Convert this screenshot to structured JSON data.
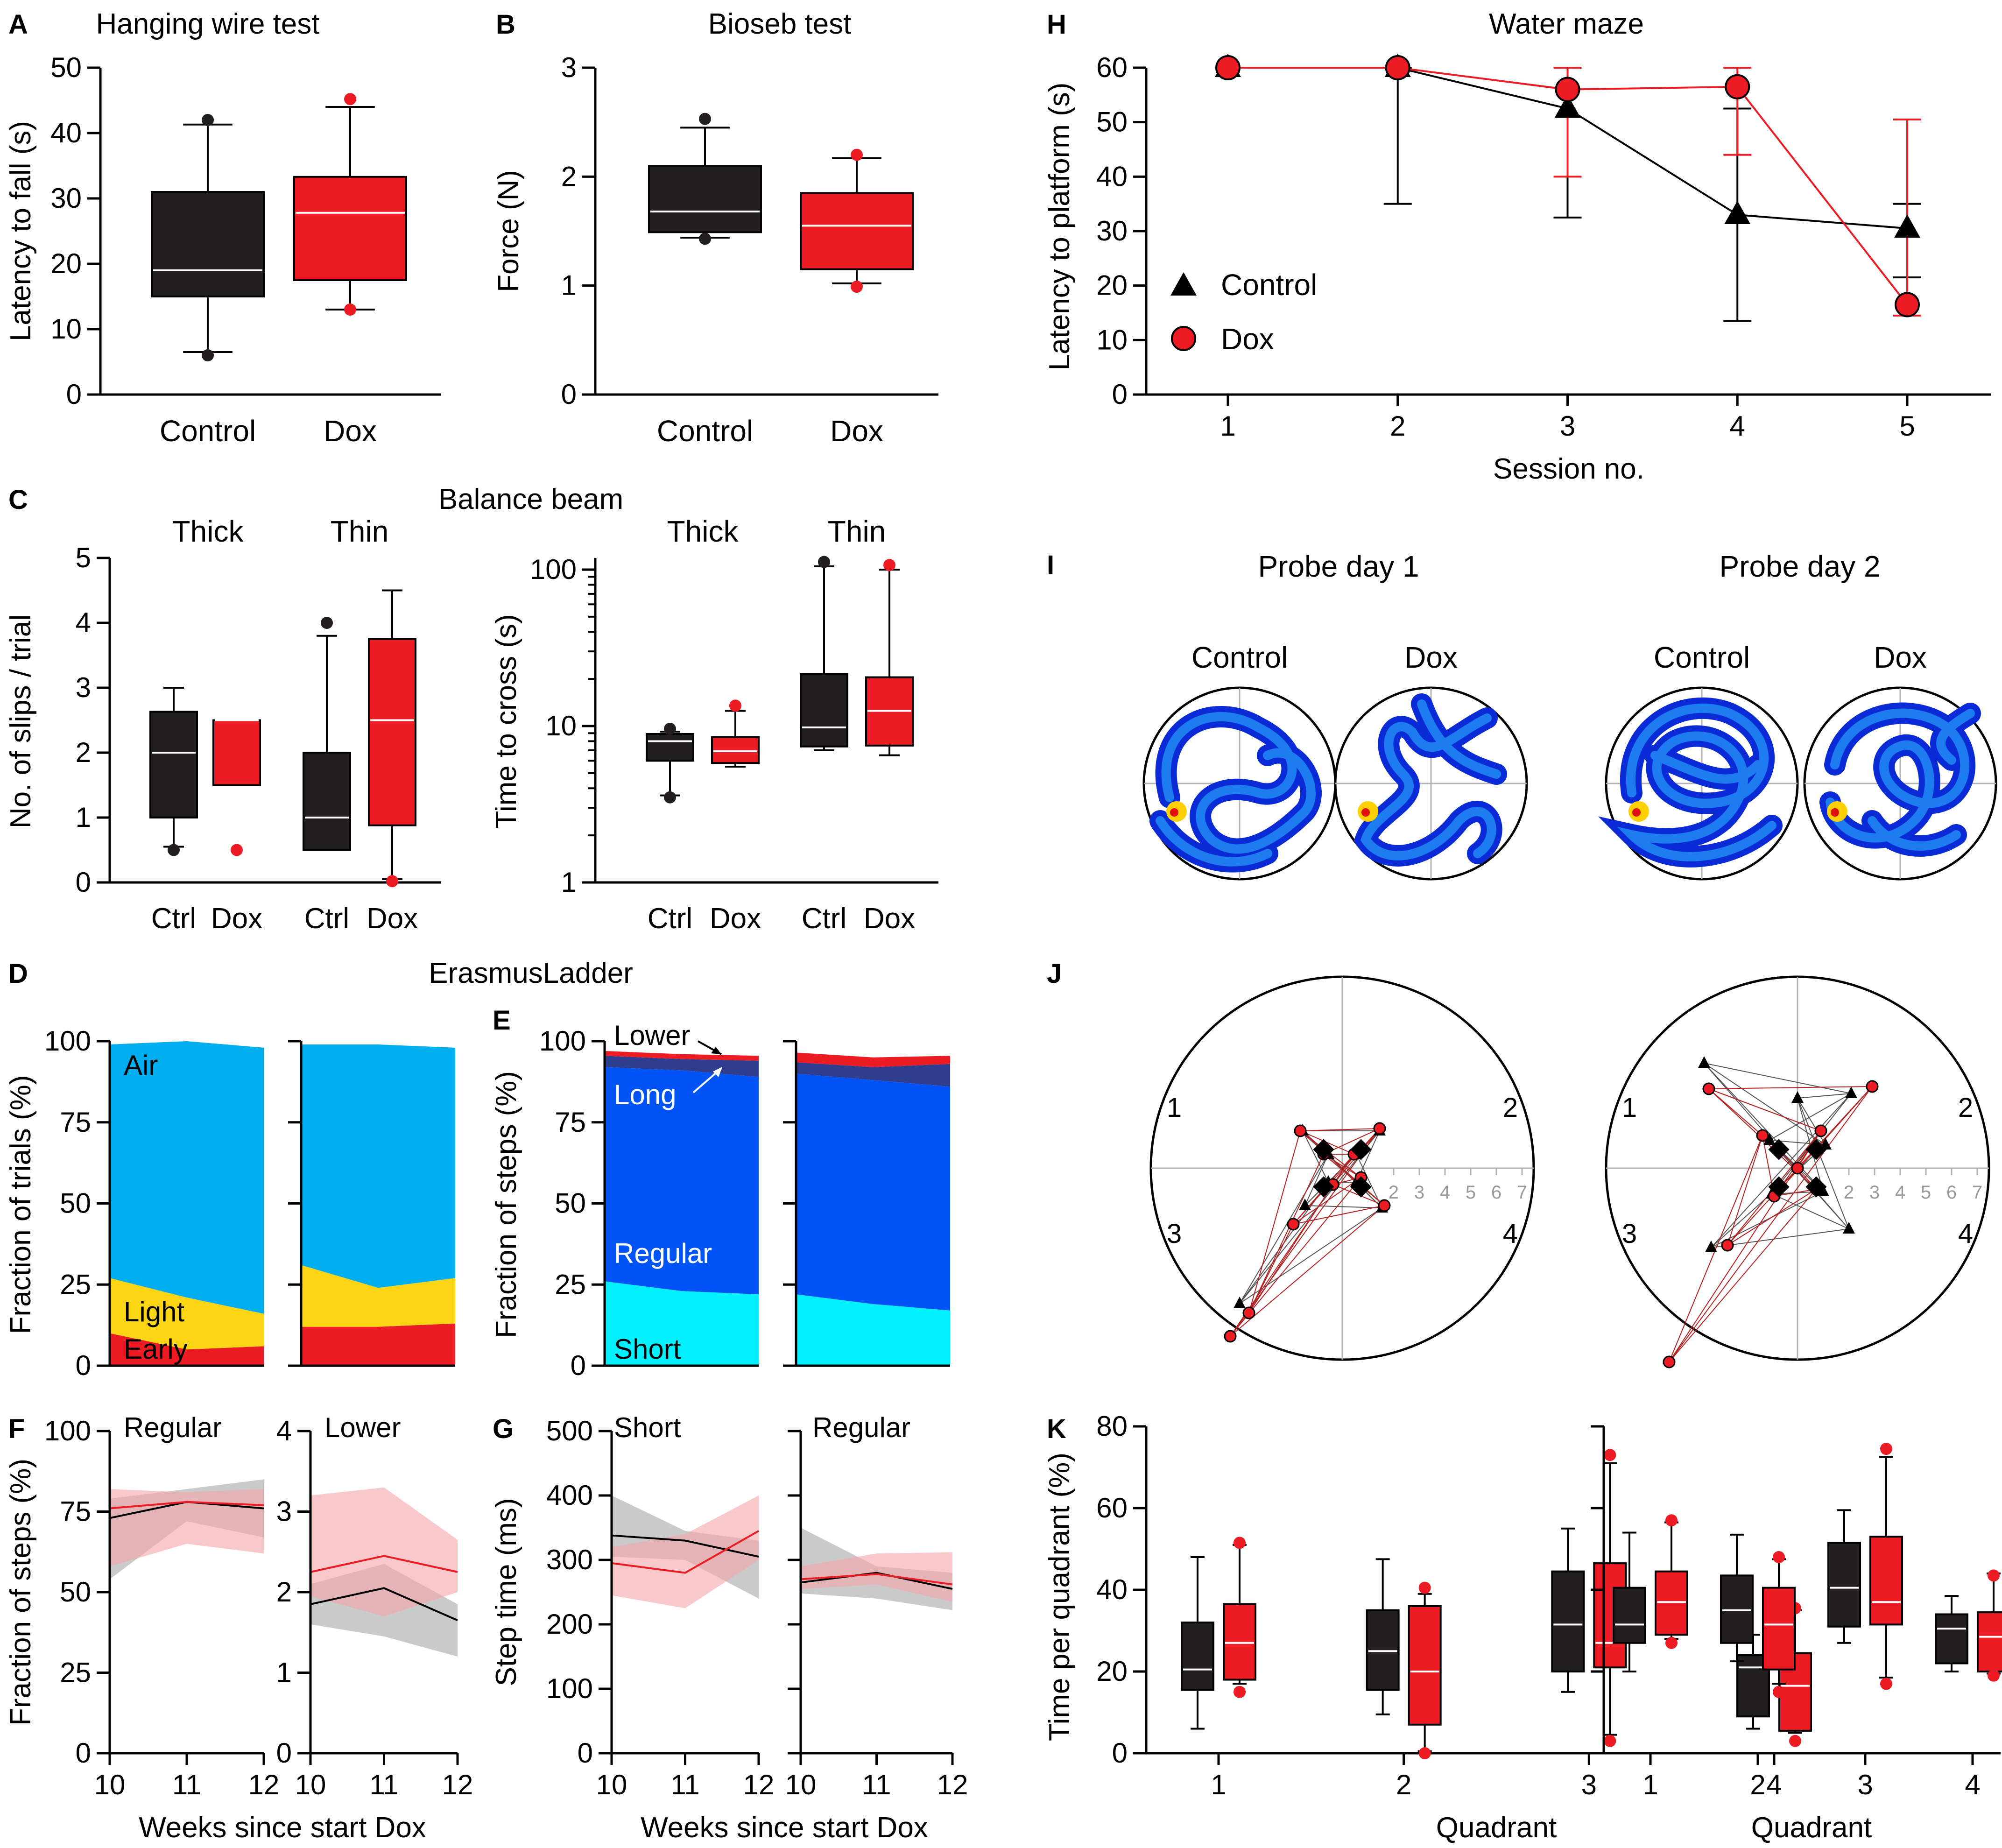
{
  "colors": {
    "control": "#231f20",
    "dox": "#ed1c24",
    "axis": "#000000",
    "air": "#00aeef",
    "light": "#fcd615",
    "early": "#ed1c24",
    "lower": "#ed1c24",
    "long": "#2e3d8e",
    "regular": "#0053f5",
    "short": "#00f0ff",
    "ctrl_band": "#a6a6a6",
    "dox_band": "#f4a3a6",
    "grid": "#b3b3b3"
  },
  "chart_data": [
    {
      "id": "A",
      "type": "box",
      "panel_label": "A",
      "title": "Hanging wire test",
      "ylabel": "Latency to fall (s)",
      "ylim": [
        0,
        50
      ],
      "yticks": [
        "0",
        "10",
        "20",
        "30",
        "40",
        "50"
      ],
      "categories": [
        "Control",
        "Dox"
      ],
      "boxes": [
        {
          "name": "Control",
          "whislo": 6.5,
          "q1": 15,
          "med": 19,
          "q3": 31,
          "whishi": 41.3,
          "fliers": [
            6,
            42
          ]
        },
        {
          "name": "Dox",
          "whislo": 13,
          "q1": 17.5,
          "med": 27.8,
          "q3": 33.3,
          "whishi": 44,
          "fliers": [
            13,
            45.2
          ]
        }
      ]
    },
    {
      "id": "B",
      "type": "box",
      "panel_label": "B",
      "title": "Bioseb test",
      "ylabel": "Force (N)",
      "ylim": [
        0,
        3
      ],
      "yticks": [
        "0",
        "1",
        "2",
        "3"
      ],
      "categories": [
        "Control",
        "Dox"
      ],
      "boxes": [
        {
          "name": "Control",
          "whislo": 1.44,
          "q1": 1.49,
          "med": 1.68,
          "q3": 2.1,
          "whishi": 2.45,
          "fliers": [
            1.43,
            2.53
          ]
        },
        {
          "name": "Dox",
          "whislo": 1.02,
          "q1": 1.15,
          "med": 1.55,
          "q3": 1.85,
          "whishi": 2.17,
          "fliers": [
            0.99,
            2.2
          ]
        }
      ]
    },
    {
      "id": "C1",
      "type": "box",
      "panel_label": "C",
      "title": "Balance beam",
      "group_labels": [
        "Thick",
        "Thin"
      ],
      "ylabel": "No. of slips / trial",
      "ylim": [
        0,
        5
      ],
      "yticks": [
        "0",
        "1",
        "2",
        "3",
        "4",
        "5"
      ],
      "categories": [
        "Ctrl",
        "Dox",
        "Ctrl",
        "Dox"
      ],
      "boxes": [
        {
          "name": "Ctrl",
          "whislo": 0.55,
          "q1": 1.0,
          "med": 2.0,
          "q3": 2.63,
          "whishi": 3.0,
          "fliers": [
            0.5
          ]
        },
        {
          "name": "Dox",
          "whislo": 1.5,
          "q1": 1.5,
          "med": 2.5,
          "q3": 2.5,
          "whishi": 2.5,
          "fliers": [
            0.5
          ]
        },
        {
          "name": "Ctrl",
          "whislo": 0.5,
          "q1": 0.5,
          "med": 1.0,
          "q3": 2.0,
          "whishi": 3.8,
          "fliers": [
            4.0
          ]
        },
        {
          "name": "Dox",
          "whislo": 0.05,
          "q1": 0.88,
          "med": 2.5,
          "q3": 3.75,
          "whishi": 4.5,
          "fliers": [
            0.02
          ]
        }
      ]
    },
    {
      "id": "C2",
      "type": "box",
      "group_labels": [
        "Thick",
        "Thin"
      ],
      "ylabel": "Time to cross (s)",
      "yscale": "log",
      "ylim": [
        1,
        100
      ],
      "yticks": [
        "1",
        "10",
        "100"
      ],
      "categories": [
        "Ctrl",
        "Dox",
        "Ctrl",
        "Dox"
      ],
      "boxes": [
        {
          "name": "Ctrl",
          "whislo": 3.6,
          "q1": 6.0,
          "med": 8.0,
          "q3": 8.9,
          "whishi": 9.2,
          "fliers": [
            3.5,
            9.6
          ]
        },
        {
          "name": "Dox",
          "whislo": 5.5,
          "q1": 5.8,
          "med": 6.9,
          "q3": 8.5,
          "whishi": 12.5,
          "fliers": [
            13.5
          ]
        },
        {
          "name": "Ctrl",
          "whislo": 7.0,
          "q1": 7.4,
          "med": 9.8,
          "q3": 21.5,
          "whishi": 105,
          "fliers": [
            112
          ]
        },
        {
          "name": "Dox",
          "whislo": 6.5,
          "q1": 7.5,
          "med": 12.5,
          "q3": 20.5,
          "whishi": 100,
          "fliers": [
            107
          ]
        }
      ]
    },
    {
      "id": "D",
      "type": "area",
      "panel_label": "D",
      "title": "ErasmusLadder",
      "ylabel": "Fraction of trials (%)",
      "ylim": [
        0,
        100
      ],
      "yticks": [
        "0",
        "25",
        "50",
        "75",
        "100"
      ],
      "x": [
        10,
        11,
        12
      ],
      "panels": [
        {
          "series": [
            {
              "name": "Early",
              "values": [
                10,
                5,
                6
              ]
            },
            {
              "name": "Light",
              "values": [
                17,
                16,
                10
              ]
            },
            {
              "name": "Air",
              "values": [
                72,
                79,
                82
              ]
            }
          ]
        },
        {
          "series": [
            {
              "name": "Early",
              "values": [
                12,
                12,
                13
              ]
            },
            {
              "name": "Light",
              "values": [
                19,
                12,
                14
              ]
            },
            {
              "name": "Air",
              "values": [
                68,
                75,
                71
              ]
            }
          ]
        }
      ],
      "labels": {
        "air": "Air",
        "light": "Light",
        "early": "Early"
      }
    },
    {
      "id": "E",
      "type": "area",
      "panel_label": "E",
      "ylabel": "Fraction of steps (%)",
      "ylim": [
        0,
        100
      ],
      "yticks": [
        "0",
        "25",
        "50",
        "75",
        "100"
      ],
      "x": [
        10,
        11,
        12
      ],
      "panels": [
        {
          "series": [
            {
              "name": "Short",
              "values": [
                26,
                23,
                22
              ]
            },
            {
              "name": "Regular",
              "values": [
                66,
                68,
                67
              ]
            },
            {
              "name": "Long",
              "values": [
                3.5,
                3.5,
                5
              ]
            },
            {
              "name": "Lower",
              "values": [
                1.5,
                1.5,
                1.5
              ]
            }
          ]
        },
        {
          "series": [
            {
              "name": "Short",
              "values": [
                22,
                19,
                17
              ]
            },
            {
              "name": "Regular",
              "values": [
                68,
                69,
                69
              ]
            },
            {
              "name": "Long",
              "values": [
                3.5,
                4,
                7
              ]
            },
            {
              "name": "Lower",
              "values": [
                3,
                3,
                2.5
              ]
            }
          ]
        }
      ],
      "labels": {
        "lower": "Lower",
        "long": "Long",
        "regular": "Regular",
        "short": "Short"
      }
    },
    {
      "id": "F",
      "type": "line",
      "panel_label": "F",
      "ylabel": "Fraction of steps (%)",
      "xlabel": "Weeks since start Dox",
      "x": [
        10,
        11,
        12
      ],
      "xticks": [
        "10",
        "11",
        "12"
      ],
      "panels": [
        {
          "subtitle": "Regular",
          "ylim": [
            0,
            100
          ],
          "yticks": [
            "0",
            "25",
            "50",
            "75",
            "100"
          ],
          "series": [
            {
              "name": "Control",
              "values": [
                73,
                78,
                76
              ],
              "lo": [
                54,
                72,
                67
              ],
              "hi": [
                79,
                82,
                85
              ]
            },
            {
              "name": "Dox",
              "values": [
                76,
                78,
                77
              ],
              "lo": [
                58,
                65,
                62
              ],
              "hi": [
                82,
                81,
                82
              ]
            }
          ]
        },
        {
          "subtitle": "Lower",
          "ylim": [
            0,
            4
          ],
          "yticks": [
            "0",
            "1",
            "2",
            "3",
            "4"
          ],
          "series": [
            {
              "name": "Control",
              "values": [
                1.85,
                2.05,
                1.65
              ],
              "lo": [
                1.6,
                1.45,
                1.2
              ],
              "hi": [
                2.1,
                2.35,
                1.85
              ]
            },
            {
              "name": "Dox",
              "values": [
                2.25,
                2.45,
                2.25
              ],
              "lo": [
                1.95,
                1.7,
                2.0
              ],
              "hi": [
                3.2,
                3.3,
                2.65
              ]
            }
          ]
        }
      ]
    },
    {
      "id": "G",
      "type": "line",
      "panel_label": "G",
      "ylabel": "Step time (ms)",
      "xlabel": "Weeks since start Dox",
      "x": [
        10,
        11,
        12
      ],
      "xticks": [
        "10",
        "11",
        "12"
      ],
      "panels": [
        {
          "subtitle": "Short",
          "ylim": [
            0,
            500
          ],
          "yticks": [
            "0",
            "100",
            "200",
            "300",
            "400",
            "500"
          ],
          "series": [
            {
              "name": "Control",
              "values": [
                338,
                330,
                305
              ],
              "lo": [
                305,
                300,
                240
              ],
              "hi": [
                400,
                345,
                330
              ]
            },
            {
              "name": "Dox",
              "values": [
                295,
                280,
                345
              ],
              "lo": [
                245,
                225,
                300
              ],
              "hi": [
                320,
                340,
                400
              ]
            }
          ]
        },
        {
          "subtitle": "Regular",
          "ylim": [
            0,
            500
          ],
          "yticks": [
            "0",
            "100",
            "200",
            "300",
            "400",
            "500"
          ],
          "series": [
            {
              "name": "Control",
              "values": [
                265,
                280,
                255
              ],
              "lo": [
                248,
                240,
                222
              ],
              "hi": [
                350,
                290,
                280
              ]
            },
            {
              "name": "Dox",
              "values": [
                270,
                278,
                262
              ],
              "lo": [
                255,
                262,
                235
              ],
              "hi": [
                290,
                310,
                312
              ]
            }
          ]
        }
      ]
    },
    {
      "id": "H",
      "type": "line",
      "panel_label": "H",
      "title": "Water maze",
      "xlabel": "Session no.",
      "ylabel": "Latency to platform (s)",
      "ylim": [
        0,
        60
      ],
      "yticks": [
        "0",
        "10",
        "20",
        "30",
        "40",
        "50",
        "60"
      ],
      "x": [
        1,
        2,
        3,
        4,
        5
      ],
      "xticks": [
        "1",
        "2",
        "3",
        "4",
        "5"
      ],
      "series": [
        {
          "name": "Control",
          "marker": "triangle",
          "values": [
            60,
            60,
            52.5,
            33,
            30.5
          ],
          "err_lo": [
            60,
            35,
            32.5,
            13.5,
            21.5
          ],
          "err_hi": [
            60,
            60,
            60,
            52.5,
            35
          ]
        },
        {
          "name": "Dox",
          "marker": "circle",
          "values": [
            60,
            60,
            56,
            56.5,
            16.5
          ],
          "err_lo": [
            60,
            60,
            40,
            44,
            14.5
          ],
          "err_hi": [
            60,
            60,
            60,
            60,
            50.5
          ]
        }
      ],
      "legend": [
        "Control",
        "Dox"
      ]
    },
    {
      "id": "I",
      "type": "heatmap",
      "panel_label": "I",
      "groups": [
        {
          "title": "Probe day 1",
          "cols": [
            "Control",
            "Dox"
          ]
        },
        {
          "title": "Probe day 2",
          "cols": [
            "Control",
            "Dox"
          ]
        }
      ]
    },
    {
      "id": "J",
      "type": "scatter",
      "panel_label": "J",
      "quadrant_labels": [
        "1",
        "2",
        "3",
        "4"
      ],
      "ring_ticks": [
        "2",
        "3",
        "4",
        "5",
        "6",
        "7"
      ]
    },
    {
      "id": "K",
      "type": "box",
      "panel_label": "K",
      "ylabel": "Time per quadrant (%)",
      "xlabel": "Quadrant",
      "ylim": [
        0,
        80
      ],
      "yticks": [
        "0",
        "20",
        "40",
        "60",
        "80"
      ],
      "categories": [
        "1",
        "2",
        "3",
        "4"
      ],
      "panels": [
        {
          "boxes": [
            {
              "name": "Control",
              "whislo": 6,
              "q1": 15.5,
              "med": 20.5,
              "q3": 32,
              "whishi": 48,
              "fliers": []
            },
            {
              "name": "Dox",
              "whislo": 17,
              "q1": 18,
              "med": 27,
              "q3": 36.5,
              "whishi": 51,
              "fliers": [
                15,
                51.5
              ]
            },
            {
              "name": "Control",
              "whislo": 9.5,
              "q1": 15.5,
              "med": 25,
              "q3": 35,
              "whishi": 47.5,
              "fliers": []
            },
            {
              "name": "Dox",
              "whislo": 0.5,
              "q1": 7,
              "med": 20,
              "q3": 36,
              "whishi": 39,
              "fliers": [
                0,
                40.5
              ]
            },
            {
              "name": "Control",
              "whislo": 15,
              "q1": 20,
              "med": 31.5,
              "q3": 44.5,
              "whishi": 55,
              "fliers": []
            },
            {
              "name": "Dox",
              "whislo": 4.5,
              "q1": 21,
              "med": 27,
              "q3": 46.5,
              "whishi": 71,
              "fliers": [
                3,
                73
              ]
            },
            {
              "name": "Control",
              "whislo": 6,
              "q1": 9,
              "med": 21,
              "q3": 24,
              "whishi": 29,
              "fliers": []
            },
            {
              "name": "Dox",
              "whislo": 5,
              "q1": 5.5,
              "med": 16.5,
              "q3": 24.5,
              "whishi": 35,
              "fliers": [
                3,
                35.5
              ]
            }
          ]
        },
        {
          "boxes": [
            {
              "name": "Control",
              "whislo": 20,
              "q1": 27,
              "med": 31.5,
              "q3": 40.5,
              "whishi": 54,
              "fliers": []
            },
            {
              "name": "Dox",
              "whislo": 28,
              "q1": 29,
              "med": 37,
              "q3": 44.5,
              "whishi": 56.5,
              "fliers": [
                27,
                57
              ]
            },
            {
              "name": "Control",
              "whislo": 22.5,
              "q1": 27,
              "med": 35,
              "q3": 43.5,
              "whishi": 53.5,
              "fliers": []
            },
            {
              "name": "Dox",
              "whislo": 17,
              "q1": 20.5,
              "med": 31.5,
              "q3": 40.5,
              "whishi": 47.5,
              "fliers": [
                15,
                48
              ]
            },
            {
              "name": "Control",
              "whislo": 27,
              "q1": 31,
              "med": 40.5,
              "q3": 51.5,
              "whishi": 59.5,
              "fliers": []
            },
            {
              "name": "Dox",
              "whislo": 18.5,
              "q1": 31.5,
              "med": 37,
              "q3": 53,
              "whishi": 72.5,
              "fliers": [
                17,
                74.5
              ]
            },
            {
              "name": "Control",
              "whislo": 20,
              "q1": 22,
              "med": 30.5,
              "q3": 34,
              "whishi": 38.5,
              "fliers": []
            },
            {
              "name": "Dox",
              "whislo": 19.5,
              "q1": 20,
              "med": 28.5,
              "q3": 34.5,
              "whishi": 44,
              "fliers": [
                19,
                43.5
              ]
            }
          ]
        }
      ]
    }
  ]
}
